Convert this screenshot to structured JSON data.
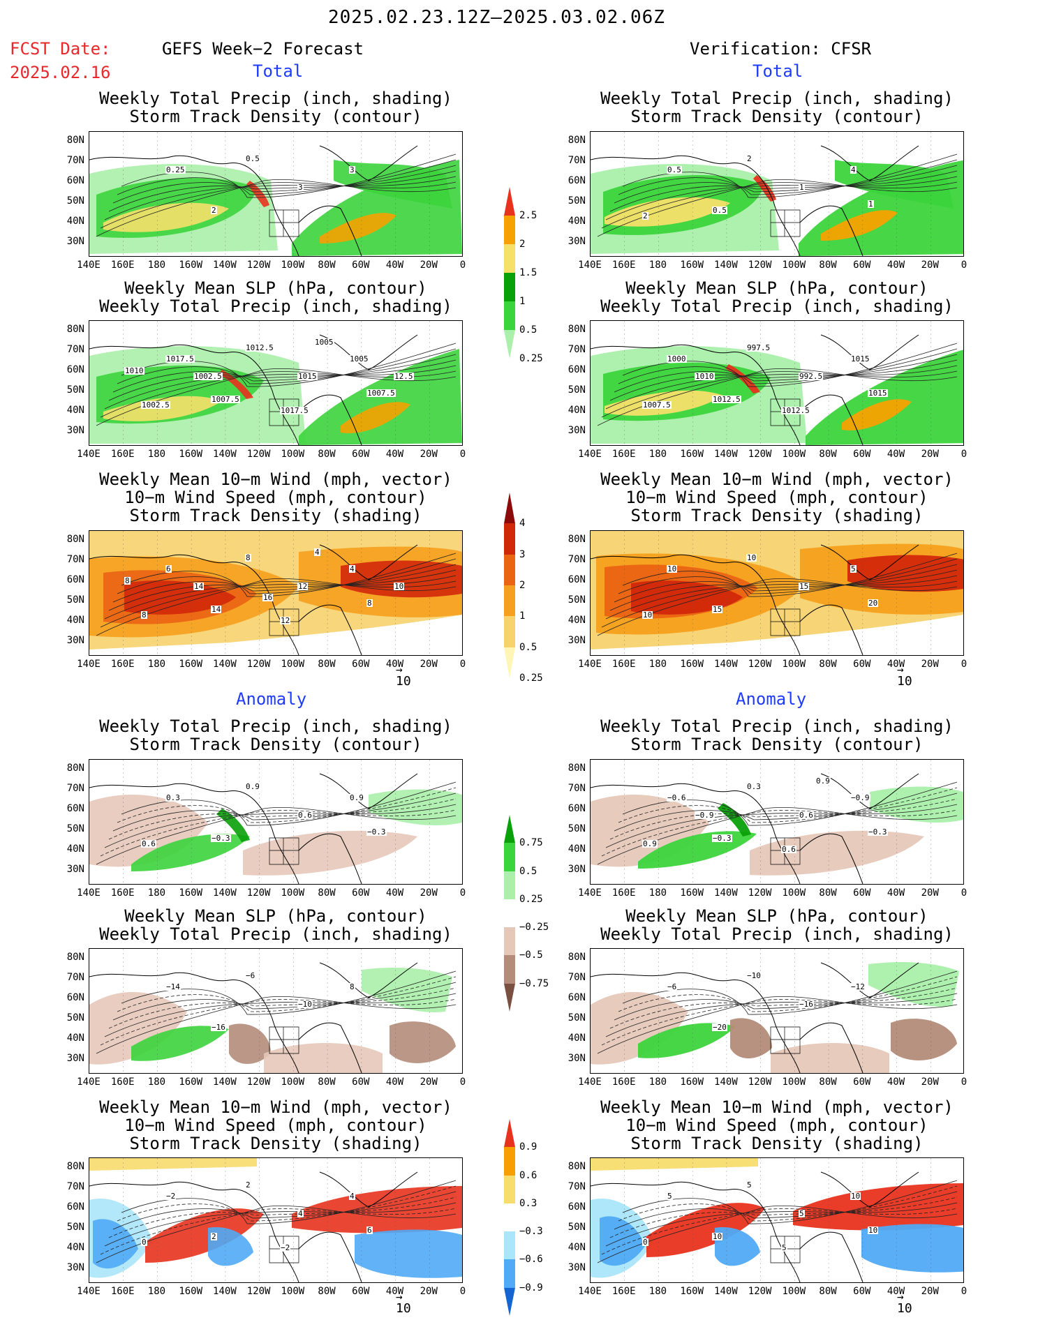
{
  "header": {
    "period": "2025.02.23.12Z–2025.03.02.06Z",
    "fcst_label": "FCST Date:",
    "fcst_date": "2025.02.16",
    "left_title": "GEFS Week−2 Forecast",
    "right_title": "Verification: CFSR",
    "total_label": "Total",
    "anomaly_label": "Anomaly"
  },
  "panel_titles": {
    "precip_storm": [
      "Weekly Total Precip (inch, shading)",
      "Storm Track Density (contour)"
    ],
    "slp_precip": [
      "Weekly Mean SLP (hPa, contour)",
      "Weekly Total Precip (inch, shading)"
    ],
    "wind_storm": [
      "Weekly Mean 10−m Wind (mph, vector)",
      "10−m Wind Speed (mph, contour)",
      "Storm Track Density (shading)"
    ]
  },
  "axes": {
    "lat": [
      "80N",
      "70N",
      "60N",
      "50N",
      "40N",
      "30N"
    ],
    "lon": [
      "140E",
      "160E",
      "180",
      "160W",
      "140W",
      "120W",
      "100W",
      "80W",
      "60W",
      "40W",
      "20W",
      "0"
    ]
  },
  "vector_ref": "10",
  "colorbars": {
    "precip_total": {
      "labels": [
        "2.5",
        "2",
        "1.5",
        "1",
        "0.5",
        "0.25"
      ],
      "colors": [
        "#e8321e",
        "#f5a200",
        "#f5e06a",
        "#0aa00a",
        "#3cd43c",
        "#aaf0aa"
      ]
    },
    "storm_total": {
      "labels": [
        "4",
        "3",
        "2",
        "1",
        "0.5",
        "0.25"
      ],
      "colors": [
        "#8c0a0a",
        "#d2280a",
        "#eb6414",
        "#f5a01e",
        "#f7d26e",
        "#fff5b4"
      ]
    },
    "precip_anom": {
      "labels": [
        "0.75",
        "0.5",
        "0.25",
        "−0.25",
        "−0.5",
        "−0.75"
      ],
      "colors": [
        "#0aa00a",
        "#3cd43c",
        "#aaf0aa",
        "#ffffff",
        "#e6c8b9",
        "#b48c7a",
        "#7a5040"
      ]
    },
    "storm_anom": {
      "labels": [
        "0.9",
        "0.6",
        "0.3",
        "−0.3",
        "−0.6",
        "−0.9"
      ],
      "colors": [
        "#e8321e",
        "#f5a000",
        "#f7dc6e",
        "#ffffff",
        "#aae6fa",
        "#50aaf5",
        "#1464d2"
      ]
    }
  },
  "contour_labels": {
    "p1": [
      "0.25",
      "0.5",
      "3",
      "2",
      "3"
    ],
    "p2": [
      "0.5",
      "2",
      "1",
      "0.5",
      "4",
      "2",
      "1"
    ],
    "p3": [
      "1017.5",
      "1012.5",
      "1015",
      "1007.5",
      "1005",
      "1002.5",
      "1007.5",
      "1017.5",
      "1002.5",
      "1005",
      "1010",
      "12.5"
    ],
    "p4": [
      "1000",
      "997.5",
      "992.5",
      "1012.5",
      "1015",
      "1007.5",
      "1015",
      "1012.5",
      "1010"
    ],
    "p5": [
      "6",
      "8",
      "12",
      "14",
      "4",
      "8",
      "8",
      "12",
      "14",
      "4",
      "8",
      "10",
      "16"
    ],
    "p6": [
      "10",
      "10",
      "15",
      "15",
      "5",
      "10",
      "20"
    ],
    "p7": [
      "0.3",
      "0.9",
      "0.6",
      "−0.3",
      "0.9",
      "0.6",
      "−0.3"
    ],
    "p8": [
      "−0.6",
      "0.3",
      "0.6",
      "−0.3",
      "−0.9",
      "0.9",
      "−0.3",
      "0.6",
      "−0.9",
      "0.9"
    ],
    "p9": [
      "−14",
      "−6",
      "−10",
      "−16",
      "8"
    ],
    "p10": [
      "−6",
      "−10",
      "−16",
      "−20",
      "−12"
    ],
    "p11": [
      "−2",
      "2",
      "4",
      "2",
      "4",
      "0",
      "6",
      "−2"
    ],
    "p12": [
      "5",
      "5",
      "5",
      "10",
      "10",
      "0",
      "10",
      "5"
    ]
  }
}
